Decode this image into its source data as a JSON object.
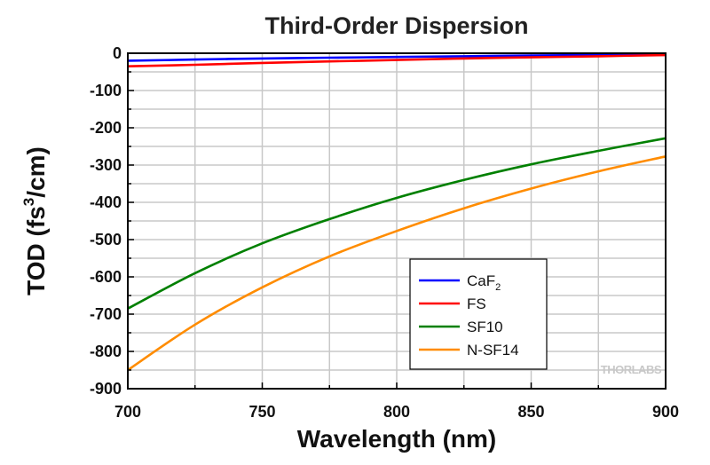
{
  "chart_data": {
    "type": "line",
    "title": "Third-Order Dispersion",
    "xlabel": "Wavelength (nm)",
    "ylabel": {
      "prefix": "TOD (fs",
      "sup": "3",
      "suffix": "/cm)"
    },
    "xlim": [
      700,
      900
    ],
    "ylim": [
      -900,
      0
    ],
    "x_ticks": [
      700,
      750,
      800,
      850,
      900
    ],
    "y_ticks": [
      0,
      -100,
      -200,
      -300,
      -400,
      -500,
      -600,
      -700,
      -800,
      -900
    ],
    "grid": true,
    "legend_position": "lower-right",
    "x": [
      700,
      725,
      750,
      775,
      800,
      825,
      850,
      875,
      900
    ],
    "series": [
      {
        "name": "CaF",
        "name_sub": "2",
        "color": "#0000ff",
        "values": [
          -20,
          -17,
          -14,
          -12,
          -10,
          -8,
          -6,
          -5,
          -4
        ]
      },
      {
        "name": "FS",
        "color": "#ff0000",
        "values": [
          -35,
          -31,
          -26,
          -22,
          -18,
          -14,
          -11,
          -8,
          -5
        ]
      },
      {
        "name": "SF10",
        "color": "#008000",
        "values": [
          -685,
          -590,
          -510,
          -445,
          -388,
          -340,
          -298,
          -262,
          -228
        ]
      },
      {
        "name": "N-SF14",
        "color": "#ff8c00",
        "values": [
          -850,
          -728,
          -628,
          -545,
          -477,
          -416,
          -363,
          -317,
          -277
        ]
      }
    ]
  },
  "watermark": "THORLABS"
}
